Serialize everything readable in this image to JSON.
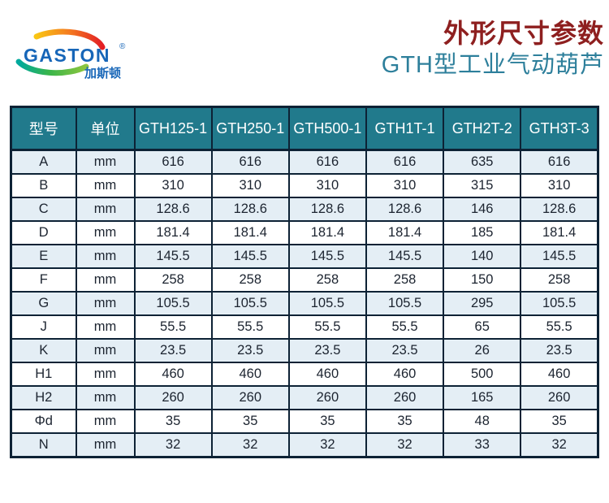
{
  "logo": {
    "brand": "GASTON",
    "registered": "®",
    "brand_cn": "加斯顿",
    "brand_color": "#1766b8",
    "arc_top_colors": [
      "#f9c513",
      "#f47b20",
      "#e31e24"
    ],
    "arc_bottom_colors": [
      "#00a99d",
      "#39b54a",
      "#8dc63f"
    ]
  },
  "header": {
    "title": "外形尺寸参数",
    "subtitle": "GTH型工业气动葫芦",
    "title_color": "#8e1f1f",
    "subtitle_color": "#2d7f9b"
  },
  "table": {
    "columns": [
      "型号",
      "单位",
      "GTH125-1",
      "GTH250-1",
      "GTH500-1",
      "GTH1T-1",
      "GTH2T-2",
      "GTH3T-3"
    ],
    "rows": [
      [
        "A",
        "mm",
        "616",
        "616",
        "616",
        "616",
        "635",
        "616"
      ],
      [
        "B",
        "mm",
        "310",
        "310",
        "310",
        "310",
        "315",
        "310"
      ],
      [
        "C",
        "mm",
        "128.6",
        "128.6",
        "128.6",
        "128.6",
        "146",
        "128.6"
      ],
      [
        "D",
        "mm",
        "181.4",
        "181.4",
        "181.4",
        "181.4",
        "185",
        "181.4"
      ],
      [
        "E",
        "mm",
        "145.5",
        "145.5",
        "145.5",
        "145.5",
        "140",
        "145.5"
      ],
      [
        "F",
        "mm",
        "258",
        "258",
        "258",
        "258",
        "150",
        "258"
      ],
      [
        "G",
        "mm",
        "105.5",
        "105.5",
        "105.5",
        "105.5",
        "295",
        "105.5"
      ],
      [
        "J",
        "mm",
        "55.5",
        "55.5",
        "55.5",
        "55.5",
        "65",
        "55.5"
      ],
      [
        "K",
        "mm",
        "23.5",
        "23.5",
        "23.5",
        "23.5",
        "26",
        "23.5"
      ],
      [
        "H1",
        "mm",
        "460",
        "460",
        "460",
        "460",
        "500",
        "460"
      ],
      [
        "H2",
        "mm",
        "260",
        "260",
        "260",
        "260",
        "165",
        "260"
      ],
      [
        "Φd",
        "mm",
        "35",
        "35",
        "35",
        "35",
        "48",
        "35"
      ],
      [
        "N",
        "mm",
        "32",
        "32",
        "32",
        "32",
        "33",
        "32"
      ]
    ],
    "colors": {
      "header_bg": "#217a8c",
      "header_text": "#ffffff",
      "row_alt_bg": "#e4eef5",
      "row_bg": "#ffffff",
      "border": "#0d2235",
      "text": "#1c2430"
    }
  }
}
